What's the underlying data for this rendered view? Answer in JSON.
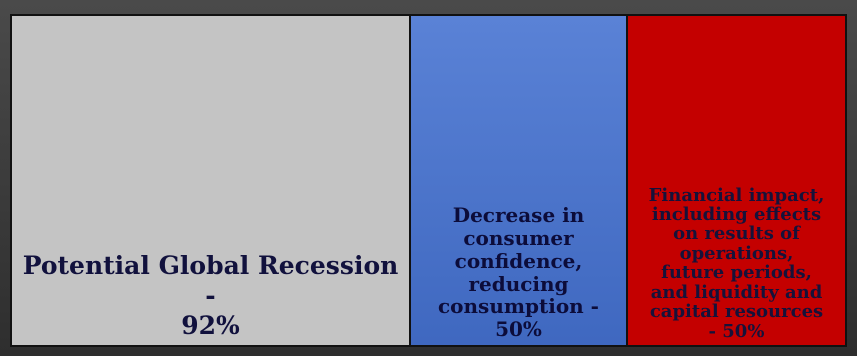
{
  "chart_data": {
    "type": "treemap",
    "items": [
      {
        "label_lines": [
          "Potential Global Recession -",
          "92%"
        ],
        "value": 92,
        "color": "#c4c4c4",
        "text_color": "#11113d"
      },
      {
        "label_lines": [
          "Decrease in",
          "consumer",
          "confidence,",
          "reducing",
          "consumption -",
          "50%"
        ],
        "value": 50,
        "color": "#4a72c8",
        "text_color": "#0c0c3a"
      },
      {
        "label_lines": [
          "Financial impact,",
          "including effects",
          "on results of",
          "operations,",
          "future periods,",
          "and liquidity and",
          "capital resources",
          "- 50%"
        ],
        "value": 50,
        "color": "#c40000",
        "text_color": "#16123a"
      }
    ]
  }
}
